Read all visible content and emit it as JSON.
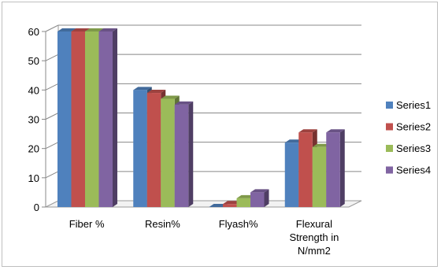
{
  "chart_data": {
    "type": "bar",
    "style": "3d-clustered-column",
    "categories": [
      "Fiber %",
      "Resin%",
      "Flyash%",
      "Flexural Strength in N/mm2"
    ],
    "category_lines": [
      [
        "Fiber %"
      ],
      [
        "Resin%"
      ],
      [
        "Flyash%"
      ],
      [
        "Flexural",
        "Strength in",
        "N/mm2"
      ]
    ],
    "series": [
      {
        "name": "Series1",
        "color": "#4f81bd",
        "values": [
          60,
          40,
          0,
          22
        ]
      },
      {
        "name": "Series2",
        "color": "#c0504d",
        "values": [
          60,
          39,
          1,
          25.5
        ]
      },
      {
        "name": "Series3",
        "color": "#9bbb59",
        "values": [
          60,
          37,
          3,
          20.5
        ]
      },
      {
        "name": "Series4",
        "color": "#8064a2",
        "values": [
          60,
          35,
          5,
          25.5
        ]
      }
    ],
    "yticks": [
      0,
      10,
      20,
      30,
      40,
      50,
      60
    ],
    "ylim": [
      0,
      60
    ],
    "grid": true,
    "legend": "right"
  }
}
